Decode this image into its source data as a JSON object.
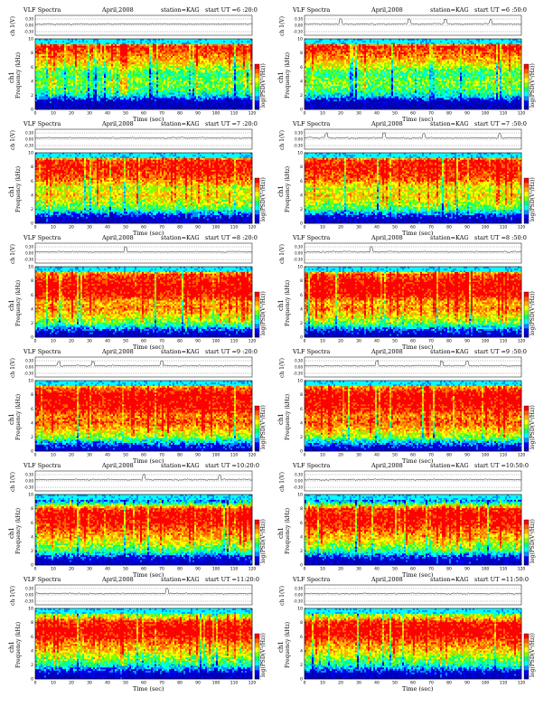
{
  "page": {
    "title": "VLF Spectra"
  },
  "colors": {
    "colormap": [
      "#0000b4",
      "#0000ff",
      "#0090ff",
      "#00ffff",
      "#00ff80",
      "#80ff00",
      "#ffff00",
      "#ffb000",
      "#ff6000",
      "#ff0000"
    ],
    "frame": "#000000",
    "trace": "#000000"
  },
  "chart_data": [
    {
      "type": "heatmap",
      "title": "VLF Spectra",
      "date": "April,2008",
      "station": "station=KAG",
      "start": "start  UT =6 :20:0",
      "ch_label": "ch 1(V)",
      "ch_ticks": [
        "0.30",
        "0.00",
        "-0.30"
      ],
      "ylabel_prefix": "ch1",
      "ylabel": "Frequency  (kHz)",
      "xlabel": "Time  (sec)",
      "xlim": [
        0,
        120
      ],
      "ylim": [
        0,
        10
      ],
      "xticks": [
        0,
        10,
        20,
        30,
        40,
        50,
        60,
        70,
        80,
        90,
        100,
        110,
        120
      ],
      "yticks": [
        0,
        2,
        4,
        6,
        8,
        10
      ],
      "colorbar_label": "log(PSD(V²/Hz))",
      "colorbar_ticks": [
        "-",
        "-",
        "-",
        "-"
      ],
      "intensity_profile": [
        0,
        0,
        0.35,
        0.5,
        0.55,
        0.45,
        0.6,
        0.75,
        0.85,
        0.95,
        0.2
      ],
      "spike_seconds": []
    },
    {
      "type": "heatmap",
      "title": "VLF Spectra",
      "date": "April,2008",
      "station": "station=KAG",
      "start": "start  UT =6 :50:0",
      "ch_label": "ch 1(V)",
      "ch_ticks": [
        "0.30",
        "0.00",
        "-0.30"
      ],
      "ylabel_prefix": "ch1",
      "ylabel": "Frequency  (kHz)",
      "xlabel": "Time  (sec)",
      "xlim": [
        0,
        120
      ],
      "ylim": [
        0,
        10
      ],
      "xticks": [
        0,
        10,
        20,
        30,
        40,
        50,
        60,
        70,
        80,
        90,
        100,
        110,
        120
      ],
      "yticks": [
        0,
        2,
        4,
        6,
        8,
        10
      ],
      "colorbar_label": "log(PSD(V²/Hz))",
      "colorbar_ticks": [
        "-",
        "-",
        "-",
        "-"
      ],
      "intensity_profile": [
        0,
        0,
        0.35,
        0.5,
        0.55,
        0.45,
        0.6,
        0.75,
        0.85,
        0.95,
        0.2
      ],
      "spike_seconds": [
        20,
        58,
        78,
        103
      ]
    },
    {
      "type": "heatmap",
      "title": "VLF Spectra",
      "date": "April,2008",
      "station": "station=KAG",
      "start": "start  UT =7 :20:0",
      "ch_label": "ch 1(V)",
      "ch_ticks": [
        "0.30",
        "0.00",
        "-0.30"
      ],
      "ylabel_prefix": "ch1",
      "ylabel": "Frequency  (kHz)",
      "xlabel": "Time  (sec)",
      "xlim": [
        0,
        120
      ],
      "ylim": [
        0,
        10
      ],
      "xticks": [
        0,
        10,
        20,
        30,
        40,
        50,
        60,
        70,
        80,
        90,
        100,
        110,
        120
      ],
      "yticks": [
        0,
        2,
        4,
        6,
        8,
        10
      ],
      "colorbar_label": "log(PSD(V²/Hz))",
      "colorbar_ticks": [
        "-",
        "-",
        "-",
        "-"
      ],
      "intensity_profile": [
        0,
        0.1,
        0.45,
        0.6,
        0.7,
        0.6,
        0.8,
        0.9,
        0.95,
        0.9,
        0.2
      ],
      "spike_seconds": []
    },
    {
      "type": "heatmap",
      "title": "VLF Spectra",
      "date": "April,2008",
      "station": "station=KAG",
      "start": "start  UT =7 :50:0",
      "ch_label": "ch 1(V)",
      "ch_ticks": [
        "0.30",
        "0.00",
        "-0.30"
      ],
      "ylabel_prefix": "ch1",
      "ylabel": "Frequency  (kHz)",
      "xlabel": "Time  (sec)",
      "xlim": [
        0,
        120
      ],
      "ylim": [
        0,
        10
      ],
      "xticks": [
        0,
        10,
        20,
        30,
        40,
        50,
        60,
        70,
        80,
        90,
        100,
        110,
        120
      ],
      "yticks": [
        0,
        2,
        4,
        6,
        8,
        10
      ],
      "colorbar_label": "log(PSD(V²/Hz))",
      "colorbar_ticks": [
        "-",
        "-",
        "-",
        "-"
      ],
      "intensity_profile": [
        0,
        0.1,
        0.45,
        0.6,
        0.7,
        0.6,
        0.8,
        0.9,
        0.95,
        0.9,
        0.2
      ],
      "spike_seconds": [
        12,
        44,
        66,
        108
      ]
    },
    {
      "type": "heatmap",
      "title": "VLF Spectra",
      "date": "April,2008",
      "station": "station=KAG",
      "start": "start  UT =8 :20:0",
      "ch_label": "ch 1(V)",
      "ch_ticks": [
        "0.30",
        "0.00",
        "-0.30"
      ],
      "ylabel_prefix": "ch1",
      "ylabel": "Frequency  (kHz)",
      "xlabel": "Time  (sec)",
      "xlim": [
        0,
        120
      ],
      "ylim": [
        0,
        10
      ],
      "xticks": [
        0,
        10,
        20,
        30,
        40,
        50,
        60,
        70,
        80,
        90,
        100,
        110,
        120
      ],
      "yticks": [
        0,
        2,
        4,
        6,
        8,
        10
      ],
      "colorbar_label": "log(PSD(V²/Hz))",
      "colorbar_ticks": [
        "-",
        "-",
        "-",
        "-"
      ],
      "intensity_profile": [
        0,
        0.15,
        0.5,
        0.65,
        0.8,
        0.75,
        0.95,
        1.0,
        0.95,
        0.85,
        0.2
      ],
      "spike_seconds": [
        50
      ]
    },
    {
      "type": "heatmap",
      "title": "VLF Spectra",
      "date": "April,2008",
      "station": "station=KAG",
      "start": "start  UT =8 :50:0",
      "ch_label": "ch 1(V)",
      "ch_ticks": [
        "0.30",
        "0.00",
        "-0.30"
      ],
      "ylabel_prefix": "ch1",
      "ylabel": "Frequency  (kHz)",
      "xlabel": "Time  (sec)",
      "xlim": [
        0,
        120
      ],
      "ylim": [
        0,
        10
      ],
      "xticks": [
        0,
        10,
        20,
        30,
        40,
        50,
        60,
        70,
        80,
        90,
        100,
        110,
        120
      ],
      "yticks": [
        0,
        2,
        4,
        6,
        8,
        10
      ],
      "colorbar_label": "log(PSD(V²/Hz))",
      "colorbar_ticks": [
        "-",
        "-",
        "-",
        "-"
      ],
      "intensity_profile": [
        0,
        0.15,
        0.5,
        0.65,
        0.8,
        0.75,
        0.95,
        1.0,
        0.95,
        0.85,
        0.2
      ],
      "spike_seconds": [
        37
      ]
    },
    {
      "type": "heatmap",
      "title": "VLF Spectra",
      "date": "April,2008",
      "station": "station=KAG",
      "start": "start  UT =9 :20:0",
      "ch_label": "ch 1(V)",
      "ch_ticks": [
        "0.30",
        "0.00",
        "-0.30"
      ],
      "ylabel_prefix": "ch1",
      "ylabel": "Frequency  (kHz)",
      "xlabel": "Time  (sec)",
      "xlim": [
        0,
        120
      ],
      "ylim": [
        0,
        10
      ],
      "xticks": [
        0,
        10,
        20,
        30,
        40,
        50,
        60,
        70,
        80,
        90,
        100,
        110,
        120
      ],
      "yticks": [
        0,
        2,
        4,
        6,
        8,
        10
      ],
      "colorbar_label": "log(PSD(V²/Hz))",
      "colorbar_ticks": [
        "-",
        "-",
        "-",
        "-"
      ],
      "intensity_profile": [
        0,
        0.2,
        0.55,
        0.7,
        0.85,
        0.8,
        0.95,
        1.0,
        1.0,
        0.85,
        0.25
      ],
      "spike_seconds": [
        13,
        32,
        70
      ]
    },
    {
      "type": "heatmap",
      "title": "VLF Spectra",
      "date": "April,2008",
      "station": "station=KAG",
      "start": "start  UT =9 :50:0",
      "ch_label": "ch 1(V)",
      "ch_ticks": [
        "0.30",
        "0.00",
        "-0.30"
      ],
      "ylabel_prefix": "ch1",
      "ylabel": "Frequency  (kHz)",
      "xlabel": "Time  (sec)",
      "xlim": [
        0,
        120
      ],
      "ylim": [
        0,
        10
      ],
      "xticks": [
        0,
        10,
        20,
        30,
        40,
        50,
        60,
        70,
        80,
        90,
        100,
        110,
        120
      ],
      "yticks": [
        0,
        2,
        4,
        6,
        8,
        10
      ],
      "colorbar_label": "log(PSD(V²/Hz))",
      "colorbar_ticks": [
        "-",
        "-",
        "-",
        "-"
      ],
      "intensity_profile": [
        0,
        0.2,
        0.55,
        0.7,
        0.85,
        0.8,
        0.95,
        1.0,
        1.0,
        0.85,
        0.25
      ],
      "spike_seconds": [
        40,
        76,
        90
      ]
    },
    {
      "type": "heatmap",
      "title": "VLF Spectra",
      "date": "April,2008",
      "station": "station=KAG",
      "start": "start  UT =10:20:0",
      "ch_label": "ch 1(V)",
      "ch_ticks": [
        "0.30",
        "0.00",
        "-0.30"
      ],
      "ylabel_prefix": "ch1",
      "ylabel": "Frequency  (kHz)",
      "xlabel": "Time  (sec)",
      "xlim": [
        0,
        120
      ],
      "ylim": [
        0,
        10
      ],
      "xticks": [
        0,
        10,
        20,
        30,
        40,
        50,
        60,
        70,
        80,
        90,
        100,
        110,
        120
      ],
      "yticks": [
        0,
        2,
        4,
        6,
        8,
        10
      ],
      "colorbar_label": "log(PSD(V²/Hz))",
      "colorbar_ticks": [
        "-",
        "-",
        "-",
        "-"
      ],
      "intensity_profile": [
        0,
        0.1,
        0.45,
        0.6,
        0.75,
        0.85,
        0.95,
        1.0,
        0.9,
        0.3,
        0.1
      ],
      "spike_seconds": [
        60,
        102
      ]
    },
    {
      "type": "heatmap",
      "title": "VLF Spectra",
      "date": "April,2008",
      "station": "station=KAG",
      "start": "start  UT =10:50:0",
      "ch_label": "ch 1(V)",
      "ch_ticks": [
        "0.30",
        "0.00",
        "-0.30"
      ],
      "ylabel_prefix": "ch1",
      "ylabel": "Frequency  (kHz)",
      "xlabel": "Time  (sec)",
      "xlim": [
        0,
        120
      ],
      "ylim": [
        0,
        10
      ],
      "xticks": [
        0,
        10,
        20,
        30,
        40,
        50,
        60,
        70,
        80,
        90,
        100,
        110,
        120
      ],
      "yticks": [
        0,
        2,
        4,
        6,
        8,
        10
      ],
      "colorbar_label": "log(PSD(V²/Hz))",
      "colorbar_ticks": [
        "-",
        "-",
        "-",
        "-"
      ],
      "intensity_profile": [
        0,
        0.1,
        0.45,
        0.6,
        0.75,
        0.85,
        0.95,
        1.0,
        0.9,
        0.3,
        0.1
      ],
      "spike_seconds": []
    },
    {
      "type": "heatmap",
      "title": "VLF Spectra",
      "date": "April,2008",
      "station": "station=KAG",
      "start": "start  UT =11:20:0",
      "ch_label": "ch 1(V)",
      "ch_ticks": [
        "0.30",
        "0.00",
        "-0.30"
      ],
      "ylabel_prefix": "ch1",
      "ylabel": "Frequency  (kHz)",
      "xlabel": "Time  (sec)",
      "xlim": [
        0,
        120
      ],
      "ylim": [
        0,
        10
      ],
      "xticks": [
        0,
        10,
        20,
        30,
        40,
        50,
        60,
        70,
        80,
        90,
        100,
        110,
        120
      ],
      "yticks": [
        0,
        2,
        4,
        6,
        8,
        10
      ],
      "colorbar_label": "log(PSD(V²/Hz))",
      "colorbar_ticks": [
        "-",
        "-",
        "-",
        "-"
      ],
      "intensity_profile": [
        0,
        0.1,
        0.4,
        0.55,
        0.7,
        0.8,
        0.95,
        1.0,
        0.95,
        0.6,
        0.2
      ],
      "spike_seconds": [
        73
      ]
    },
    {
      "type": "heatmap",
      "title": "VLF Spectra",
      "date": "April,2008",
      "station": "station=KAG",
      "start": "start  UT =11:50:0",
      "ch_label": "ch 1(V)",
      "ch_ticks": [
        "0.30",
        "0.00",
        "-0.30"
      ],
      "ylabel_prefix": "ch1",
      "ylabel": "Frequency  (kHz)",
      "xlabel": "Time  (sec)",
      "xlim": [
        0,
        120
      ],
      "ylim": [
        0,
        10
      ],
      "xticks": [
        0,
        10,
        20,
        30,
        40,
        50,
        60,
        70,
        80,
        90,
        100,
        110,
        120
      ],
      "yticks": [
        0,
        2,
        4,
        6,
        8,
        10
      ],
      "colorbar_label": "log(PSD(V²/Hz))",
      "colorbar_ticks": [
        "-",
        "-",
        "-",
        "-"
      ],
      "intensity_profile": [
        0,
        0.1,
        0.4,
        0.55,
        0.7,
        0.8,
        0.95,
        1.0,
        0.95,
        0.6,
        0.2
      ],
      "spike_seconds": []
    }
  ]
}
